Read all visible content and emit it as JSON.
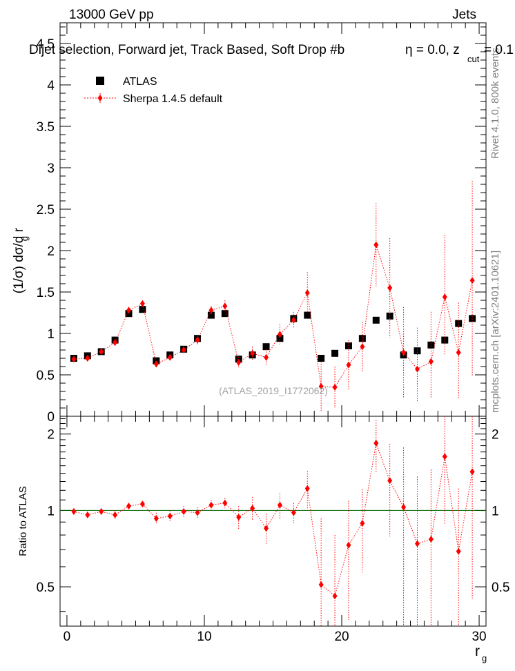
{
  "header": {
    "left": "13000 GeV pp",
    "right": "Jets",
    "title_main": "Dijet selection, Forward jet, Track Based, Soft Drop #b",
    "title_eta": "η = 0.0, z",
    "title_cut": "cut",
    "title_zval": " = 0.1"
  },
  "side_labels": {
    "rivet": "Rivet 4.1.0,  800k events",
    "mcplots": "mcplots.cern.ch [arXiv:2401.10621]"
  },
  "watermark": "(ATLAS_2019_I1772062)",
  "colors": {
    "data": "#000000",
    "mc": "#ff0000",
    "ratio_line": "#006400"
  },
  "chart_data": [
    {
      "type": "scatter",
      "panel": "main",
      "ylabel_main": "(1/σ) dσ/d r",
      "ylabel_sub": "g",
      "xlim": [
        -0.5,
        30.5
      ],
      "ylim": [
        0,
        4.75
      ],
      "yticks": [
        0,
        0.5,
        1,
        1.5,
        2,
        2.5,
        3,
        3.5,
        4,
        4.5
      ],
      "yticklabels": [
        "0",
        "0.5",
        "1",
        "1.5",
        "2",
        "2.5",
        "3",
        "3.5",
        "4",
        "4.5"
      ],
      "legend": {
        "data": "ATLAS",
        "mc": "Sherpa 1.4.5 default"
      },
      "legend_position": "top-left",
      "x": [
        0.5,
        1.5,
        2.5,
        3.5,
        4.5,
        5.5,
        6.5,
        7.5,
        8.5,
        9.5,
        10.5,
        11.5,
        12.5,
        13.5,
        14.5,
        15.5,
        16.5,
        17.5,
        18.5,
        19.5,
        20.5,
        21.5,
        22.5,
        23.5,
        24.5,
        25.5,
        26.5,
        27.5,
        28.5,
        29.5
      ],
      "series": [
        {
          "name": "ATLAS",
          "values": [
            0.7,
            0.73,
            0.78,
            0.92,
            1.24,
            1.29,
            0.67,
            0.74,
            0.81,
            0.94,
            1.22,
            1.24,
            0.69,
            0.74,
            0.84,
            0.94,
            1.18,
            1.22,
            0.7,
            0.76,
            0.85,
            0.94,
            1.16,
            1.21,
            0.74,
            0.79,
            0.86,
            0.92,
            1.12,
            1.18
          ]
        },
        {
          "name": "Sherpa 1.4.5 default",
          "values": [
            0.69,
            0.7,
            0.78,
            0.89,
            1.28,
            1.36,
            0.63,
            0.71,
            0.8,
            0.92,
            1.28,
            1.33,
            0.65,
            0.76,
            0.71,
            0.99,
            1.16,
            1.49,
            0.36,
            0.35,
            0.62,
            0.84,
            2.07,
            1.55,
            0.77,
            0.57,
            0.66,
            1.44,
            0.77,
            1.64
          ],
          "err_up": [
            0.03,
            0.03,
            0.03,
            0.04,
            0.04,
            0.04,
            0.04,
            0.04,
            0.04,
            0.05,
            0.05,
            0.07,
            0.07,
            0.08,
            0.1,
            0.12,
            0.1,
            0.25,
            0.3,
            0.25,
            0.3,
            0.3,
            0.5,
            0.6,
            0.55,
            0.5,
            0.6,
            0.75,
            0.6,
            1.2
          ],
          "err_down": [
            0.03,
            0.03,
            0.03,
            0.04,
            0.04,
            0.04,
            0.04,
            0.04,
            0.04,
            0.05,
            0.05,
            0.07,
            0.07,
            0.08,
            0.1,
            0.12,
            0.1,
            0.25,
            0.3,
            0.25,
            0.3,
            0.3,
            0.5,
            0.6,
            0.55,
            0.4,
            0.45,
            0.7,
            0.55,
            1.15
          ]
        }
      ]
    },
    {
      "type": "scatter",
      "panel": "ratio",
      "ylabel": "Ratio to ATLAS",
      "xlabel_main": "r",
      "xlabel_sub": "g",
      "xlim": [
        -0.5,
        30.5
      ],
      "ylim": [
        0.35,
        2.35
      ],
      "yticks": [
        0.5,
        1,
        2
      ],
      "yticklabels": [
        "0.5",
        "1",
        "2"
      ],
      "xticks": [
        0,
        10,
        20,
        30
      ],
      "xticklabels": [
        "0",
        "10",
        "20",
        "30"
      ],
      "x": [
        0.5,
        1.5,
        2.5,
        3.5,
        4.5,
        5.5,
        6.5,
        7.5,
        8.5,
        9.5,
        10.5,
        11.5,
        12.5,
        13.5,
        14.5,
        15.5,
        16.5,
        17.5,
        18.5,
        19.5,
        20.5,
        21.5,
        22.5,
        23.5,
        24.5,
        25.5,
        26.5,
        27.5,
        28.5,
        29.5
      ],
      "series": [
        {
          "name": "Sherpa / ATLAS",
          "values": [
            0.99,
            0.96,
            0.99,
            0.96,
            1.04,
            1.06,
            0.93,
            0.95,
            0.99,
            0.98,
            1.05,
            1.07,
            0.94,
            1.02,
            0.85,
            1.05,
            0.98,
            1.22,
            0.51,
            0.46,
            0.73,
            0.89,
            1.84,
            1.31,
            1.03,
            0.74,
            0.77,
            1.63,
            0.69,
            1.42
          ],
          "err_up": [
            0.03,
            0.03,
            0.03,
            0.04,
            0.03,
            0.03,
            0.05,
            0.05,
            0.05,
            0.05,
            0.05,
            0.05,
            0.1,
            0.11,
            0.12,
            0.12,
            0.09,
            0.21,
            0.42,
            0.34,
            0.36,
            0.32,
            0.43,
            0.52,
            0.74,
            0.62,
            0.68,
            0.82,
            0.53,
            0.97
          ],
          "err_down": [
            0.03,
            0.03,
            0.03,
            0.04,
            0.03,
            0.03,
            0.05,
            0.05,
            0.05,
            0.05,
            0.05,
            0.05,
            0.1,
            0.11,
            0.12,
            0.12,
            0.09,
            0.21,
            0.42,
            0.34,
            0.36,
            0.32,
            0.43,
            0.52,
            0.74,
            0.5,
            0.52,
            0.75,
            0.5,
            0.97
          ]
        }
      ]
    }
  ]
}
